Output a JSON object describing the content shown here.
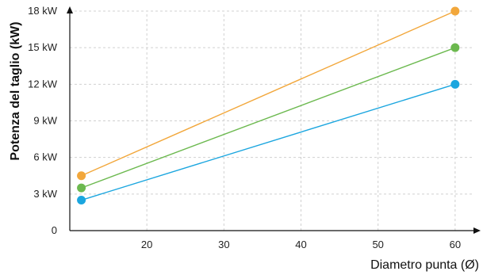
{
  "chart_data": {
    "type": "line",
    "xlabel": "Diametro punta (Ø)",
    "ylabel": "Potenza del taglio (kW)",
    "xlim": [
      10,
      63
    ],
    "ylim": [
      0,
      18
    ],
    "x_ticks": [
      {
        "value": 20,
        "label": "20"
      },
      {
        "value": 30,
        "label": "30"
      },
      {
        "value": 40,
        "label": "40"
      },
      {
        "value": 50,
        "label": "50"
      },
      {
        "value": 60,
        "label": "60"
      }
    ],
    "y_ticks": [
      {
        "value": 0,
        "label": "0"
      },
      {
        "value": 3,
        "label": "3 kW"
      },
      {
        "value": 6,
        "label": "6 kW"
      },
      {
        "value": 9,
        "label": "9 kW"
      },
      {
        "value": 12,
        "label": "12 kW"
      },
      {
        "value": 15,
        "label": "15 kW"
      },
      {
        "value": 18,
        "label": "18 kW"
      }
    ],
    "grid": true,
    "series": [
      {
        "color": "#f2a73b",
        "points": [
          {
            "x": 11.5,
            "y": 4.5
          },
          {
            "x": 60,
            "y": 18
          }
        ]
      },
      {
        "color": "#6cb94f",
        "points": [
          {
            "x": 11.5,
            "y": 3.5
          },
          {
            "x": 60,
            "y": 15
          }
        ]
      },
      {
        "color": "#1ba6df",
        "points": [
          {
            "x": 11.5,
            "y": 2.5
          },
          {
            "x": 60,
            "y": 12
          }
        ]
      }
    ]
  }
}
